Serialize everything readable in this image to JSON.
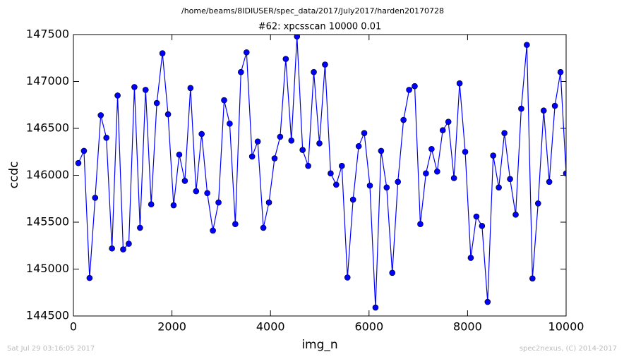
{
  "chart_data": {
    "type": "line",
    "header": "/home/beams/8IDIUSER/spec_data/2017/July2017/harden20170728",
    "title": "#62: xpcsscan 10000 0.01",
    "x_label": "img_n",
    "y_label": "ccdc",
    "footer_left": "Sat Jul 29 03:16:05 2017",
    "footer_right": "spec2nexus, (C) 2014-2017",
    "x": [
      100,
      214,
      328,
      441,
      555,
      669,
      783,
      897,
      1010,
      1124,
      1238,
      1352,
      1465,
      1579,
      1693,
      1807,
      1921,
      2034,
      2148,
      2262,
      2376,
      2490,
      2603,
      2717,
      2831,
      2945,
      3059,
      3172,
      3286,
      3400,
      3514,
      3627,
      3741,
      3855,
      3969,
      4083,
      4196,
      4310,
      4424,
      4538,
      4652,
      4765,
      4879,
      4993,
      5107,
      5221,
      5334,
      5448,
      5562,
      5676,
      5790,
      5903,
      6017,
      6131,
      6245,
      6358,
      6472,
      6586,
      6700,
      6814,
      6927,
      7041,
      7155,
      7269,
      7383,
      7496,
      7610,
      7724,
      7838,
      7952,
      8065,
      8179,
      8293,
      8407,
      8520,
      8634,
      8748,
      8862,
      8976,
      9089,
      9203,
      9317,
      9431,
      9545,
      9658,
      9772,
      9886,
      10000
    ],
    "series": [
      {
        "color": "#0000ff",
        "values": [
          146130,
          146260,
          144905,
          145760,
          146640,
          146400,
          145220,
          146850,
          145210,
          145270,
          146940,
          145440,
          146910,
          145690,
          146770,
          147300,
          146650,
          145680,
          146220,
          145940,
          146930,
          145830,
          146440,
          145810,
          145410,
          145710,
          146800,
          146550,
          145480,
          147100,
          147310,
          146200,
          146360,
          145440,
          145710,
          146180,
          146410,
          147240,
          146370,
          147480,
          146270,
          146100,
          147100,
          146340,
          147180,
          146020,
          145900,
          146100,
          144910,
          145740,
          146310,
          146450,
          145890,
          144590,
          146260,
          145870,
          144960,
          145930,
          146590,
          146910,
          146950,
          145480,
          146020,
          146280,
          146040,
          146480,
          146570,
          145970,
          146980,
          146250,
          145120,
          145560,
          145460,
          144650,
          146210,
          145870,
          146450,
          145960,
          145580,
          146710,
          147390,
          144900,
          145700,
          146690,
          145930,
          146740,
          147100,
          146020
        ]
      }
    ],
    "xlim": [
      0,
      10000
    ],
    "xticks": [
      0,
      2000,
      4000,
      6000,
      8000,
      10000
    ],
    "ylim": [
      144500,
      147500
    ],
    "yticks": [
      144500,
      145000,
      145500,
      146000,
      146500,
      147000,
      147500
    ]
  }
}
